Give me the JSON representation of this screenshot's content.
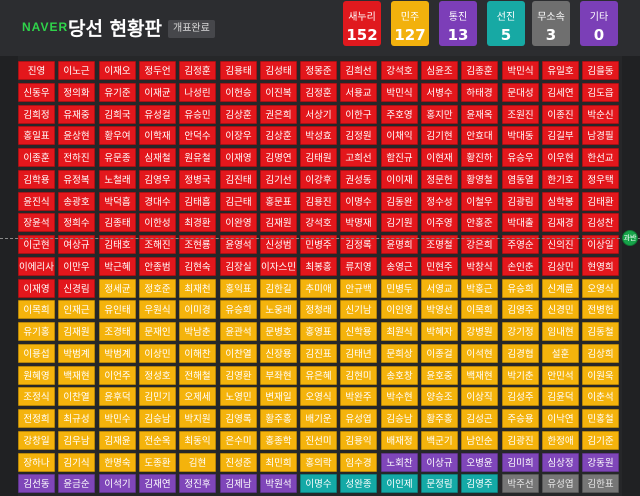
{
  "header": {
    "logo": "NAVER",
    "title": "당선 현황판",
    "status": "개표완료"
  },
  "parties": [
    {
      "name": "새누리",
      "seats": "152",
      "color": "#e0191e"
    },
    {
      "name": "민주",
      "seats": "127",
      "color": "#f2b10d"
    },
    {
      "name": "통진",
      "seats": "13",
      "color": "#7c3eb8"
    },
    {
      "name": "선진",
      "seats": "5",
      "color": "#17a9a4"
    },
    {
      "name": "무소속",
      "seats": "3",
      "color": "#6f6f6f"
    },
    {
      "name": "기타",
      "seats": "0",
      "color": "#7b3fb7"
    }
  ],
  "majority_marker": "과반",
  "rows": [
    [
      "진영",
      "이노근",
      "이재오",
      "정두언",
      "김정훈",
      "김용태",
      "김성태",
      "정몽준",
      "김희선",
      "강석호",
      "심윤조",
      "김종훈",
      "박민식",
      "유일호",
      "김을동"
    ],
    [
      "신동우",
      "정의화",
      "유기준",
      "이재균",
      "나성린",
      "이헌승",
      "이진복",
      "김정훈",
      "서용교",
      "박민식",
      "서병수",
      "하태경",
      "문대성",
      "김세연",
      "김도읍"
    ],
    [
      "김희정",
      "유재중",
      "김희국",
      "유성걸",
      "유승민",
      "김상훈",
      "권은희",
      "서상기",
      "이한구",
      "주호영",
      "홍지만",
      "윤재옥",
      "조원진",
      "이종진",
      "박순신"
    ],
    [
      "홍일표",
      "윤상현",
      "황우여",
      "이학재",
      "안덕수",
      "이장우",
      "김상훈",
      "박성효",
      "김정원",
      "이채익",
      "김기현",
      "안효대",
      "박대동",
      "김길부",
      "남경필"
    ],
    [
      "이종훈",
      "전하진",
      "유문종",
      "심재철",
      "원유철",
      "이재영",
      "김명연",
      "김태원",
      "고희선",
      "함진규",
      "이현재",
      "황진하",
      "유승우",
      "이우현",
      "한선교"
    ],
    [
      "김학용",
      "유정복",
      "노철래",
      "김영우",
      "정병국",
      "김진태",
      "김기선",
      "이강후",
      "권성동",
      "이이재",
      "정문헌",
      "황영철",
      "염동열",
      "한기호",
      "정우택"
    ],
    [
      "윤진식",
      "송광호",
      "박덕흠",
      "경대수",
      "김태흠",
      "김근태",
      "홍문표",
      "김용진",
      "이명수",
      "김동완",
      "정수성",
      "이철우",
      "김광림",
      "심학봉",
      "김태환"
    ],
    [
      "장윤석",
      "정희수",
      "김종태",
      "이한성",
      "최경환",
      "이완영",
      "김재원",
      "강석호",
      "박명재",
      "김기원",
      "이주영",
      "안홍준",
      "박대출",
      "김재경",
      "김성찬"
    ],
    [
      "이군현",
      "여상규",
      "김태호",
      "조해진",
      "조현룡",
      "윤영석",
      "신성범",
      "민병주",
      "김정록",
      "윤명희",
      "조명철",
      "강은희",
      "주영순",
      "신의진",
      "이상일"
    ],
    [
      "이에리사",
      "이만우",
      "박근혜",
      "안종범",
      "김현숙",
      "김장실",
      "이자스민",
      "최봉홍",
      "류지영",
      "송영근",
      "민현주",
      "박창식",
      "손인춘",
      "김상민",
      "현영희"
    ],
    [
      "이재영",
      "신경림",
      "정세균",
      "정호준",
      "최재천",
      "홍익표",
      "김한길",
      "추미애",
      "안규백",
      "민병두",
      "서영교",
      "박홍근",
      "유승희",
      "신계륜",
      "오영식"
    ],
    [
      "이목희",
      "인재근",
      "유인태",
      "우원식",
      "이미경",
      "유승희",
      "노웅래",
      "정청래",
      "신기남",
      "이인영",
      "박영선",
      "이목희",
      "김영주",
      "신경민",
      "전병헌"
    ],
    [
      "유기홍",
      "김재원",
      "조경태",
      "문재인",
      "박남춘",
      "윤관석",
      "문병호",
      "홍영표",
      "신학용",
      "최원식",
      "박혜자",
      "강병원",
      "강기정",
      "임내현",
      "김동철"
    ],
    [
      "이용섭",
      "박범계",
      "박범계",
      "이상민",
      "이해찬",
      "이찬열",
      "신장용",
      "김진표",
      "김태년",
      "문희상",
      "이종걸",
      "이석현",
      "김경협",
      "설훈",
      "김상희"
    ],
    [
      "원혜영",
      "백재현",
      "이언주",
      "정성호",
      "전해철",
      "김영환",
      "부좌현",
      "유은혜",
      "김현미",
      "송호창",
      "윤호중",
      "백재현",
      "박기춘",
      "안민석",
      "이원욱"
    ],
    [
      "조정식",
      "이찬열",
      "윤후덕",
      "김민기",
      "오제세",
      "노영민",
      "변재일",
      "오영식",
      "박완주",
      "박수현",
      "양승조",
      "이상직",
      "김성주",
      "김윤덕",
      "이춘석"
    ],
    [
      "전정희",
      "최규성",
      "박민수",
      "김승남",
      "박지원",
      "김영록",
      "황주홍",
      "배기운",
      "유성엽",
      "김승남",
      "황주홍",
      "김성곤",
      "주승용",
      "이낙연",
      "민홍철"
    ],
    [
      "강창일",
      "김우남",
      "김재윤",
      "전순옥",
      "최동익",
      "은수미",
      "홍종학",
      "진선미",
      "김용익",
      "배재정",
      "백군기",
      "남인순",
      "김광진",
      "한정애",
      "김기준"
    ],
    [
      "장하나",
      "김기식",
      "한명숙",
      "도종환",
      "김현",
      "진성준",
      "최민희",
      "홍의락",
      "임수경",
      "노회찬",
      "이상규",
      "오병윤",
      "김미희",
      "심상정",
      "강동원"
    ],
    [
      "김선동",
      "윤금순",
      "이석기",
      "김재연",
      "정진후",
      "김제남",
      "박원석",
      "이명수",
      "성완종",
      "이인제",
      "문정림",
      "김영주",
      "박주선",
      "유성엽",
      "김한표"
    ]
  ],
  "row_colors": [
    [
      "red",
      "red",
      "red",
      "red",
      "red",
      "red",
      "red",
      "red",
      "red",
      "red",
      "red",
      "red",
      "red",
      "red",
      "red"
    ],
    [
      "red",
      "red",
      "red",
      "red",
      "red",
      "red",
      "red",
      "red",
      "red",
      "red",
      "red",
      "red",
      "red",
      "red",
      "red"
    ],
    [
      "red",
      "red",
      "red",
      "red",
      "red",
      "red",
      "red",
      "red",
      "red",
      "red",
      "red",
      "red",
      "red",
      "red",
      "red"
    ],
    [
      "red",
      "red",
      "red",
      "red",
      "red",
      "red",
      "red",
      "red",
      "red",
      "red",
      "red",
      "red",
      "red",
      "red",
      "red"
    ],
    [
      "red",
      "red",
      "red",
      "red",
      "red",
      "red",
      "red",
      "red",
      "red",
      "red",
      "red",
      "red",
      "red",
      "red",
      "red"
    ],
    [
      "red",
      "red",
      "red",
      "red",
      "red",
      "red",
      "red",
      "red",
      "red",
      "red",
      "red",
      "red",
      "red",
      "red",
      "red"
    ],
    [
      "red",
      "red",
      "red",
      "red",
      "red",
      "red",
      "red",
      "red",
      "red",
      "red",
      "red",
      "red",
      "red",
      "red",
      "red"
    ],
    [
      "red",
      "red",
      "red",
      "red",
      "red",
      "red",
      "red",
      "red",
      "red",
      "red",
      "red",
      "red",
      "red",
      "red",
      "red"
    ],
    [
      "red",
      "red",
      "red",
      "red",
      "red",
      "red",
      "red",
      "red",
      "red",
      "red",
      "red",
      "red",
      "red",
      "red",
      "red"
    ],
    [
      "red",
      "red",
      "red",
      "red",
      "red",
      "red",
      "red",
      "red",
      "red",
      "red",
      "red",
      "red",
      "red",
      "red",
      "red"
    ],
    [
      "red",
      "red",
      "yel",
      "yel",
      "yel",
      "yel",
      "yel",
      "yel",
      "yel",
      "yel",
      "yel",
      "yel",
      "yel",
      "yel",
      "yel"
    ],
    [
      "yel",
      "yel",
      "yel",
      "yel",
      "yel",
      "yel",
      "yel",
      "yel",
      "yel",
      "yel",
      "yel",
      "yel",
      "yel",
      "yel",
      "yel"
    ],
    [
      "yel",
      "yel",
      "yel",
      "yel",
      "yel",
      "yel",
      "yel",
      "yel",
      "yel",
      "yel",
      "yel",
      "yel",
      "yel",
      "yel",
      "yel"
    ],
    [
      "yel",
      "yel",
      "yel",
      "yel",
      "yel",
      "yel",
      "yel",
      "yel",
      "yel",
      "yel",
      "yel",
      "yel",
      "yel",
      "yel",
      "yel"
    ],
    [
      "yel",
      "yel",
      "yel",
      "yel",
      "yel",
      "yel",
      "yel",
      "yel",
      "yel",
      "yel",
      "yel",
      "yel",
      "yel",
      "yel",
      "yel"
    ],
    [
      "yel",
      "yel",
      "yel",
      "yel",
      "yel",
      "yel",
      "yel",
      "yel",
      "yel",
      "yel",
      "yel",
      "yel",
      "yel",
      "yel",
      "yel"
    ],
    [
      "yel",
      "yel",
      "yel",
      "yel",
      "yel",
      "yel",
      "yel",
      "yel",
      "yel",
      "yel",
      "yel",
      "yel",
      "yel",
      "yel",
      "yel"
    ],
    [
      "yel",
      "yel",
      "yel",
      "yel",
      "yel",
      "yel",
      "yel",
      "yel",
      "yel",
      "yel",
      "yel",
      "yel",
      "yel",
      "yel",
      "yel"
    ],
    [
      "yel",
      "yel",
      "yel",
      "yel",
      "yel",
      "yel",
      "yel",
      "yel",
      "yel",
      "pur",
      "pur",
      "pur",
      "pur",
      "pur",
      "pur"
    ],
    [
      "pur",
      "pur",
      "pur",
      "pur",
      "pur",
      "pur",
      "pur",
      "teal",
      "teal",
      "teal",
      "teal",
      "teal",
      "gray",
      "gray",
      "gray"
    ]
  ]
}
